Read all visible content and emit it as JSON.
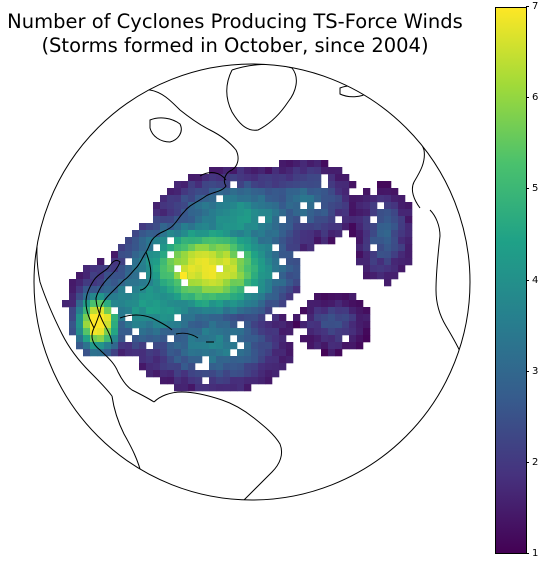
{
  "title": {
    "line1": "Number of Cyclones Producing TS-Force Winds",
    "line2": "(Storms formed in October, since 2004)"
  },
  "colorbar": {
    "min": 1,
    "max": 7,
    "ticks": [
      "1",
      "2",
      "3",
      "4",
      "5",
      "6",
      "7"
    ],
    "colormap": "viridis"
  },
  "map": {
    "projection": "orthographic",
    "center": "North Atlantic",
    "coastline_color": "#000000",
    "background": "#ffffff"
  }
}
